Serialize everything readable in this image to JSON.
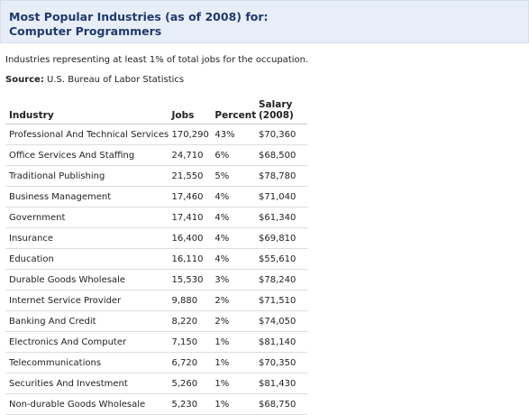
{
  "header": {
    "title_line1": "Most Popular Industries (as of 2008) for:",
    "title_line2": "Computer Programmers"
  },
  "description": "Industries representing at least 1% of total jobs for the occupation.",
  "source": {
    "label": "Source:",
    "value": "U.S. Bureau of Labor Statistics"
  },
  "table": {
    "columns": {
      "industry": "Industry",
      "jobs": "Jobs",
      "percent": "Percent",
      "salary_line1": "Salary",
      "salary_line2": "(2008)"
    },
    "rows": [
      {
        "industry": "Professional And Technical Services",
        "jobs": "170,290",
        "percent": "43%",
        "salary": "$70,360"
      },
      {
        "industry": "Office Services And Staffing",
        "jobs": "24,710",
        "percent": "6%",
        "salary": "$68,500"
      },
      {
        "industry": "Traditional Publishing",
        "jobs": "21,550",
        "percent": "5%",
        "salary": "$78,780"
      },
      {
        "industry": "Business Management",
        "jobs": "17,460",
        "percent": "4%",
        "salary": "$71,040"
      },
      {
        "industry": "Government",
        "jobs": "17,410",
        "percent": "4%",
        "salary": "$61,340"
      },
      {
        "industry": "Insurance",
        "jobs": "16,400",
        "percent": "4%",
        "salary": "$69,810"
      },
      {
        "industry": "Education",
        "jobs": "16,110",
        "percent": "4%",
        "salary": "$55,610"
      },
      {
        "industry": "Durable Goods Wholesale",
        "jobs": "15,530",
        "percent": "3%",
        "salary": "$78,240"
      },
      {
        "industry": "Internet Service Provider",
        "jobs": "9,880",
        "percent": "2%",
        "salary": "$71,510"
      },
      {
        "industry": "Banking And Credit",
        "jobs": "8,220",
        "percent": "2%",
        "salary": "$74,050"
      },
      {
        "industry": "Electronics And Computer",
        "jobs": "7,150",
        "percent": "1%",
        "salary": "$81,140"
      },
      {
        "industry": "Telecommunications",
        "jobs": "6,720",
        "percent": "1%",
        "salary": "$70,350"
      },
      {
        "industry": "Securities And Investment",
        "jobs": "5,260",
        "percent": "1%",
        "salary": "$81,430"
      },
      {
        "industry": "Non-durable Goods Wholesale",
        "jobs": "5,230",
        "percent": "1%",
        "salary": "$68,750"
      }
    ]
  },
  "colors": {
    "header_background": "#e8eef7",
    "header_text": "#1f3a6e"
  }
}
